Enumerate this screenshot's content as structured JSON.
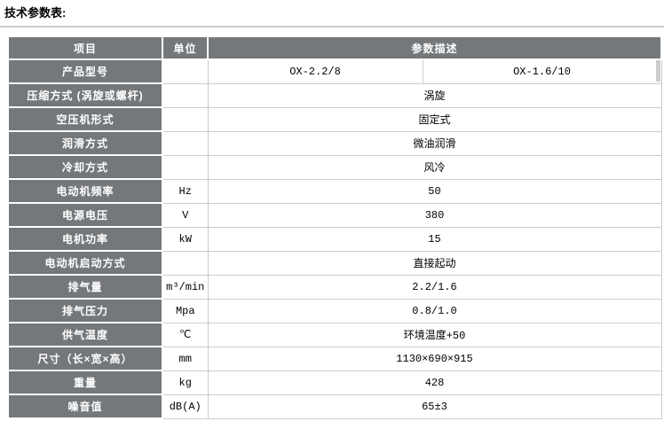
{
  "page": {
    "title": "技术参数表:"
  },
  "colors": {
    "header_bg": "#75787b",
    "header_text": "#ffffff",
    "cell_border": "#cccccc",
    "title_rule": "#cbcbcb",
    "value_text": "#000000"
  },
  "table": {
    "headers": [
      "项目",
      "单位",
      "参数描述"
    ],
    "product_row": {
      "label": "产品型号",
      "unit": "",
      "values": [
        "OX-2.2/8",
        "OX-1.6/10"
      ]
    },
    "rows": [
      {
        "label": "压缩方式 (涡旋或螺杆)",
        "unit": "",
        "value": "涡旋"
      },
      {
        "label": "空压机形式",
        "unit": "",
        "value": "固定式"
      },
      {
        "label": "润滑方式",
        "unit": "",
        "value": "微油润滑"
      },
      {
        "label": "冷却方式",
        "unit": "",
        "value": "风冷"
      },
      {
        "label": "电动机频率",
        "unit": "Hz",
        "value": "50"
      },
      {
        "label": "电源电压",
        "unit": "V",
        "value": "380"
      },
      {
        "label": "电机功率",
        "unit": "kW",
        "value": "15"
      },
      {
        "label": "电动机启动方式",
        "unit": "",
        "value": "直接起动"
      },
      {
        "label": "排气量",
        "unit": "m³/min",
        "value": "2.2/1.6"
      },
      {
        "label": "排气压力",
        "unit": "Mpa",
        "value": "0.8/1.0"
      },
      {
        "label": "供气温度",
        "unit": "℃",
        "value": "环境温度+50"
      },
      {
        "label": "尺寸（长×宽×高）",
        "unit": "mm",
        "value": "1130×690×915"
      },
      {
        "label": "重量",
        "unit": "kg",
        "value": "428"
      },
      {
        "label": "噪音值",
        "unit": "dB(A)",
        "value": "65±3"
      }
    ]
  }
}
